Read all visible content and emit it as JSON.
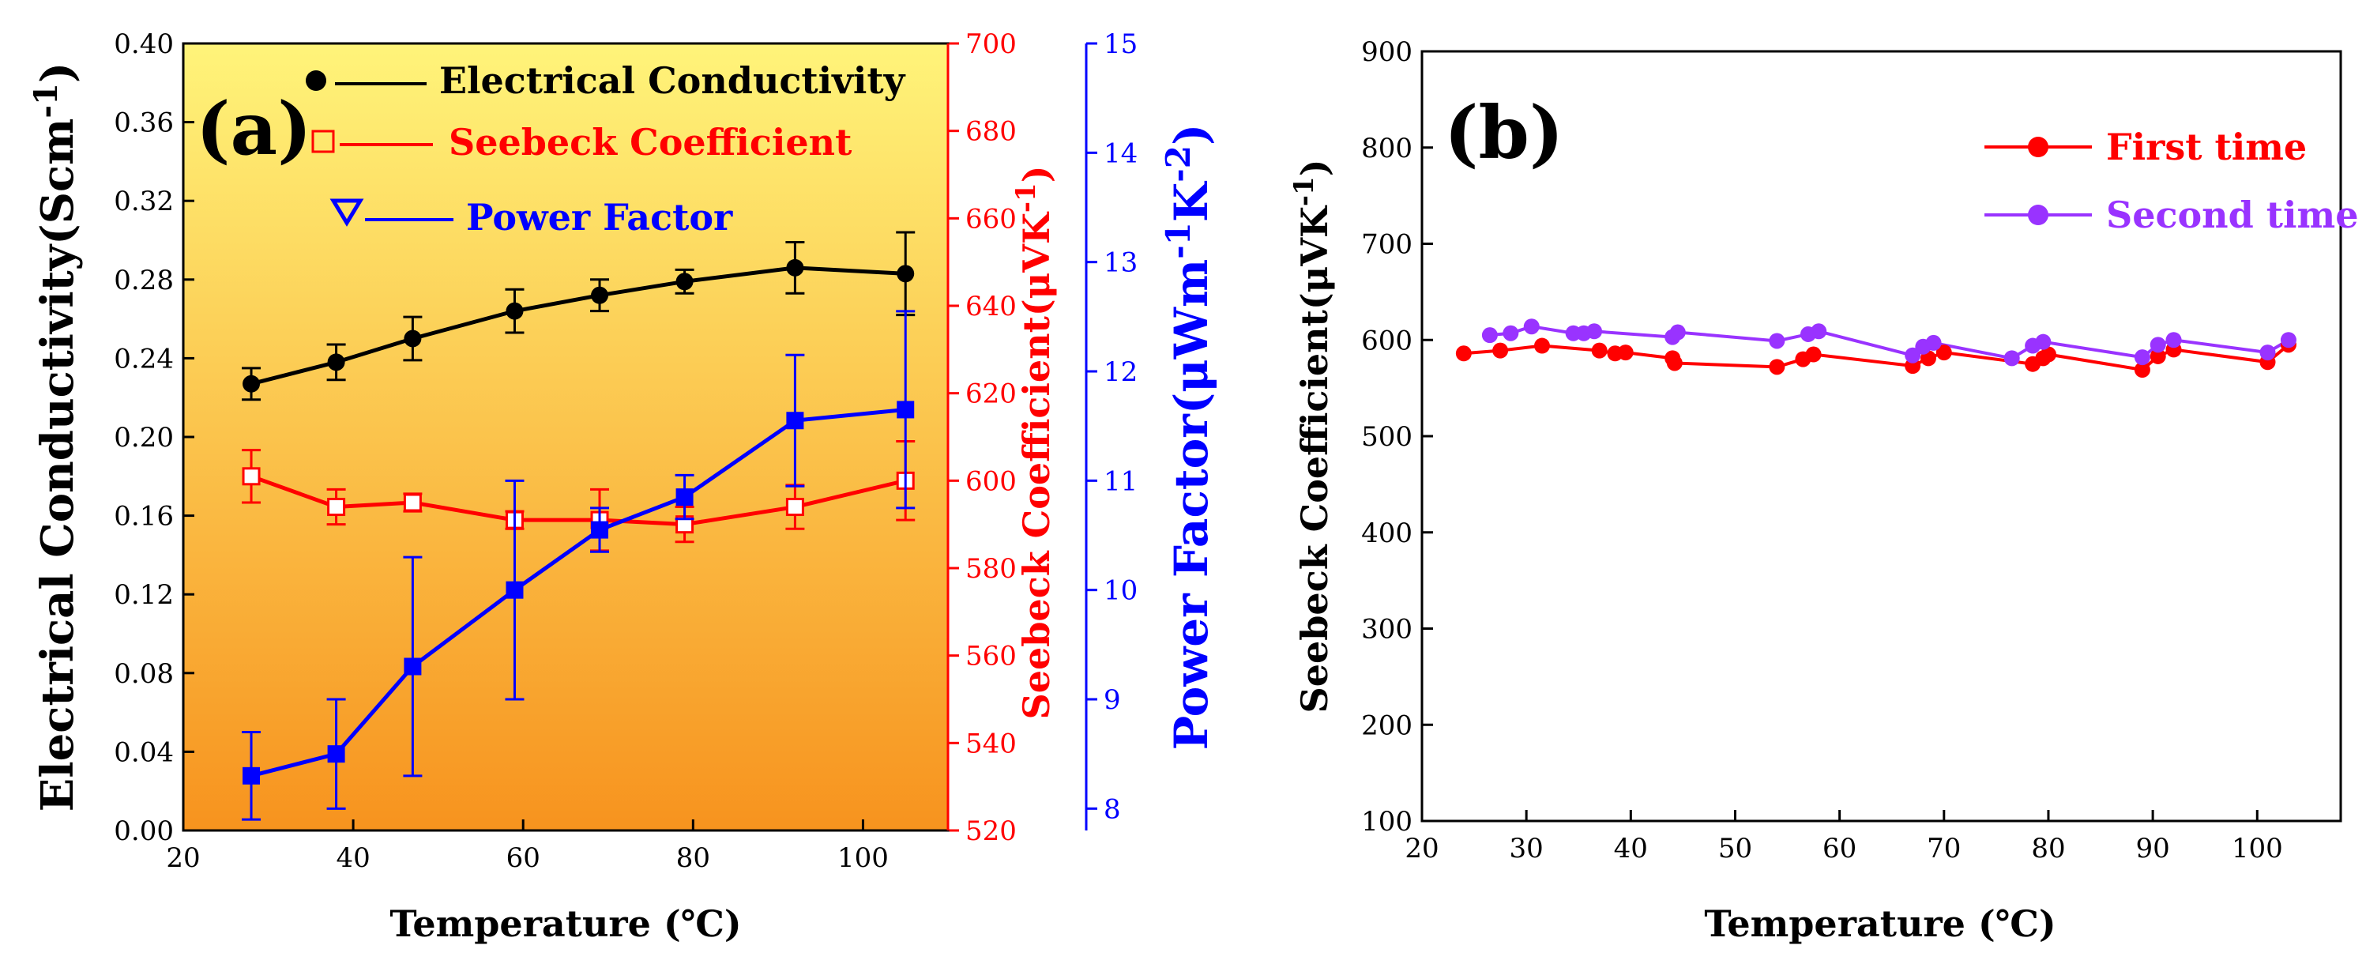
{
  "chart_data": [
    {
      "type": "line",
      "panel_label": "(a)",
      "xlabel": "Temperature (℃)",
      "xlim": [
        20,
        110
      ],
      "xticks": [
        "20",
        "40",
        "60",
        "80",
        "100"
      ],
      "axes": {
        "left": {
          "label": "Electrical Conductivity(Scm",
          "label_sup": "-1",
          "label_end": ")",
          "ylim": [
            0.0,
            0.4
          ],
          "ticks": [
            "0.00",
            "0.04",
            "0.08",
            "0.12",
            "0.16",
            "0.20",
            "0.24",
            "0.28",
            "0.32",
            "0.36",
            "0.40"
          ],
          "color": "#000000"
        },
        "right1": {
          "label": "Seebeck Coefficient(μVK",
          "label_sup": "-1",
          "label_end": ")",
          "ylim": [
            520,
            700
          ],
          "ticks": [
            "520",
            "540",
            "560",
            "580",
            "600",
            "620",
            "640",
            "660",
            "680",
            "700"
          ],
          "color": "#ff0000"
        },
        "right2": {
          "label": "Power Factor(μWm",
          "label_sup1": "-1",
          "label_mid": "K",
          "label_sup2": "-2",
          "label_end": ")",
          "ylim": [
            7.8,
            15
          ],
          "ticks": [
            "8",
            "9",
            "10",
            "11",
            "12",
            "13",
            "14",
            "15"
          ],
          "color": "#0000ff"
        }
      },
      "series": [
        {
          "name": "Electrical Conductivity",
          "axis": "left",
          "color": "#000000",
          "marker": "filled-circle",
          "x": [
            28,
            38,
            47,
            59,
            69,
            79,
            92,
            105
          ],
          "y": [
            0.227,
            0.238,
            0.25,
            0.264,
            0.272,
            0.279,
            0.286,
            0.283
          ],
          "err": [
            0.008,
            0.009,
            0.011,
            0.011,
            0.008,
            0.006,
            0.013,
            0.021
          ]
        },
        {
          "name": "Seebeck Coefficient",
          "axis": "right1",
          "color": "#ff0000",
          "marker": "open-square",
          "x": [
            28,
            38,
            47,
            59,
            69,
            79,
            92,
            105
          ],
          "y": [
            601,
            594,
            595,
            591,
            591,
            590,
            594,
            600
          ],
          "err": [
            6,
            4,
            2,
            2,
            7,
            4,
            5,
            9
          ]
        },
        {
          "name": "Power Factor",
          "axis": "right2",
          "color": "#0000ff",
          "marker": "filled-square",
          "x": [
            28,
            38,
            47,
            59,
            69,
            79,
            92,
            105
          ],
          "y": [
            8.3,
            8.5,
            9.3,
            10.0,
            10.55,
            10.85,
            11.55,
            11.65
          ],
          "err": [
            0.4,
            0.5,
            1.0,
            1.0,
            0.2,
            0.2,
            0.6,
            0.9
          ]
        }
      ],
      "legend": [
        "Electrical Conductivity",
        "Seebeck Coefficient",
        "Power Factor"
      ],
      "background": {
        "top": "#fff47a",
        "bottom": "#f7931e"
      }
    },
    {
      "type": "line",
      "panel_label": "(b)",
      "xlabel": "Temperature (℃)",
      "ylabel": "Seebeck Coefficient(μVK",
      "ylabel_sup": "-1",
      "ylabel_end": ")",
      "xlim": [
        20,
        108
      ],
      "ylim": [
        100,
        900
      ],
      "xticks": [
        "20",
        "30",
        "40",
        "50",
        "60",
        "70",
        "80",
        "90",
        "100"
      ],
      "yticks": [
        "100",
        "200",
        "300",
        "400",
        "500",
        "600",
        "700",
        "800",
        "900"
      ],
      "series": [
        {
          "name": "First time",
          "color": "#ff0000",
          "marker": "filled-circle",
          "x": [
            24,
            27.5,
            31.5,
            37,
            38.5,
            39.5,
            44,
            44.2,
            54,
            56.5,
            57.5,
            67,
            68.5,
            70,
            78.5,
            79.5,
            80,
            89,
            90.5,
            92,
            101,
            103
          ],
          "y": [
            586,
            589,
            594,
            589,
            586,
            587,
            581,
            576,
            572,
            580,
            585,
            573,
            581,
            587,
            575,
            581,
            585,
            569,
            583,
            590,
            577,
            595
          ]
        },
        {
          "name": "Second time",
          "color": "#9933ff",
          "marker": "filled-circle",
          "x": [
            26.5,
            28.5,
            30.5,
            34.5,
            35.5,
            36.5,
            44,
            44.5,
            54,
            57,
            58,
            67,
            68,
            69,
            76.5,
            78.5,
            79.5,
            89,
            90.5,
            92,
            101,
            103
          ],
          "y": [
            605,
            607,
            614,
            607,
            607,
            609,
            603,
            608,
            599,
            606,
            609,
            584,
            593,
            597,
            581,
            594,
            598,
            582,
            595,
            600,
            587,
            600
          ]
        }
      ],
      "legend": [
        "First time",
        "Second time"
      ]
    }
  ]
}
